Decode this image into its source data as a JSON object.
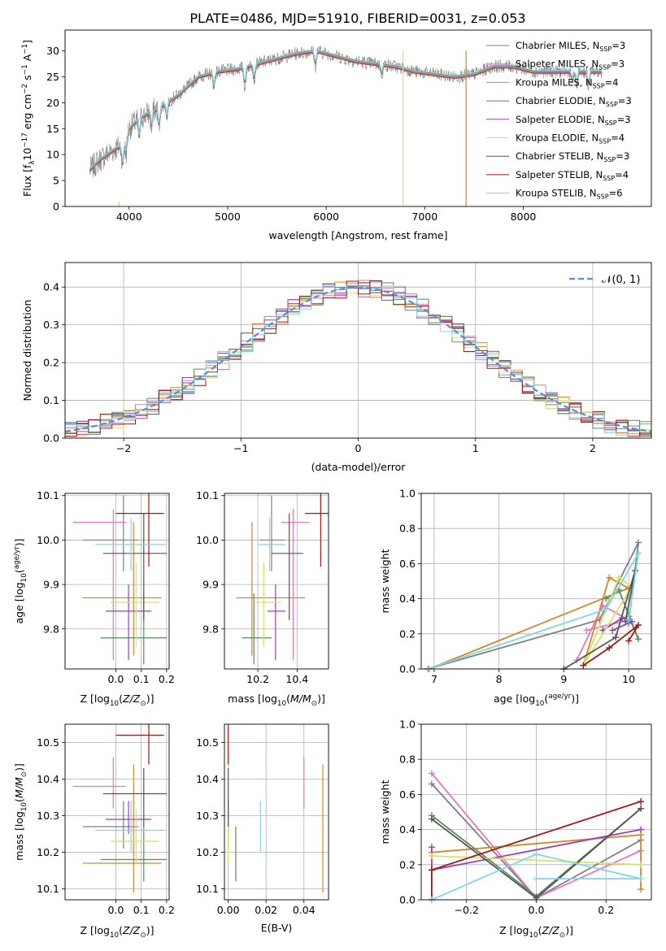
{
  "figure": {
    "title": "PLATE=0486, MJD=51910, FIBERID=0031, z=0.053"
  },
  "colors": {
    "models": [
      "#7f7f7f",
      "#e377c2",
      "#d4862b",
      "#5a8a5a",
      "#9a3fb5",
      "#d8e26a",
      "#555555",
      "#a01818",
      "#7fd7e6"
    ],
    "normal_curve": "#5b8ad8",
    "grid": "#b0b0b0"
  },
  "models": [
    {
      "name": "Chabrier MILES",
      "n_ssp": "3",
      "age": 10.0,
      "age_err": [
        0.07,
        0.1
      ],
      "Z": 0.03,
      "Z_err": [
        0.16,
        0.06
      ],
      "mass": 10.27,
      "mass_err": [
        0.06,
        0.07
      ],
      "ebv": 0.0
    },
    {
      "name": "Salpeter MILES",
      "n_ssp": "3",
      "age": 10.04,
      "age_err": [
        0.31,
        0.03
      ],
      "Z": -0.01,
      "Z_err": [
        0.16,
        0.05
      ],
      "mass": 10.38,
      "mass_err": [
        0.06,
        0.08
      ],
      "ebv": 0.04
    },
    {
      "name": "Kroupa MILES",
      "n_ssp": "4",
      "age": 9.87,
      "age_err": [
        0.13,
        0.17
      ],
      "Z": 0.07,
      "Z_err": [
        0.2,
        0.11
      ],
      "mass": 10.17,
      "mass_err": [
        0.08,
        0.27
      ],
      "ebv": 0.05
    },
    {
      "name": "Chabrier ELODIE",
      "n_ssp": "3",
      "age": 9.78,
      "age_err": [
        0.06,
        0.1
      ],
      "Z": 0.11,
      "Z_err": [
        0.17,
        0.09
      ],
      "mass": 10.18,
      "mass_err": [
        0.06,
        0.09
      ],
      "ebv": 0.004
    },
    {
      "name": "Salpeter ELODIE",
      "n_ssp": "3",
      "age": 9.84,
      "age_err": [
        0.11,
        0.06
      ],
      "Z": 0.05,
      "Z_err": [
        0.09,
        0.09
      ],
      "mass": 10.29,
      "mass_err": [
        0.04,
        0.05
      ],
      "ebv": 0.0
    },
    {
      "name": "Kroupa ELODIE",
      "n_ssp": "4",
      "age": 9.86,
      "age_err": [
        0.1,
        0.09
      ],
      "Z": 0.08,
      "Z_err": [
        0.1,
        0.09
      ],
      "mass": 10.23,
      "mass_err": [
        0.06,
        0.09
      ],
      "ebv": 0.0
    },
    {
      "name": "Chabrier STELIB",
      "n_ssp": "3",
      "age": 9.97,
      "age_err": [
        0.15,
        0.09
      ],
      "Z": 0.11,
      "Z_err": [
        0.16,
        0.09
      ],
      "mass": 10.36,
      "mass_err": [
        0.09,
        0.07
      ],
      "ebv": 0.0
    },
    {
      "name": "Salpeter STELIB",
      "n_ssp": "4",
      "age": 10.06,
      "age_err": [
        0.12,
        0.06
      ],
      "Z": 0.13,
      "Z_err": [
        0.13,
        0.06
      ],
      "mass": 10.52,
      "mass_err": [
        0.08,
        0.07
      ],
      "ebv": 0.0
    },
    {
      "name": "Kroupa STELIB",
      "n_ssp": "6",
      "age": 9.99,
      "age_err": [
        0.06,
        0.06
      ],
      "Z": 0.06,
      "Z_err": [
        0.14,
        0.14
      ],
      "mass": 10.26,
      "mass_err": [
        0.06,
        0.08
      ],
      "ebv": 0.017
    }
  ],
  "chart_data": [
    {
      "type": "line",
      "title": "PLATE=0486, MJD=51910, FIBERID=0031, z=0.053",
      "xlabel": "wavelength [Angstrom, rest frame]",
      "ylabel_parts": [
        "Flux [f",
        "λ",
        "10",
        "−17",
        " erg cm",
        "−2",
        " s",
        "−1",
        " A",
        "−1",
        "]"
      ],
      "xlim": [
        3350,
        9300
      ],
      "ylim": [
        0,
        34
      ],
      "xticks": [
        4000,
        5000,
        6000,
        7000,
        8000
      ],
      "yticks": [
        0,
        5,
        10,
        15,
        20,
        25,
        30
      ],
      "grid": false,
      "legend_location": "top-right",
      "continuum_knots": [
        [
          3600,
          7
        ],
        [
          3700,
          9
        ],
        [
          3850,
          11
        ],
        [
          3950,
          12
        ],
        [
          4000,
          15
        ],
        [
          4100,
          17
        ],
        [
          4300,
          19
        ],
        [
          4500,
          21.5
        ],
        [
          4700,
          25
        ],
        [
          4900,
          26
        ],
        [
          5100,
          26.5
        ],
        [
          5300,
          27.5
        ],
        [
          5500,
          28.5
        ],
        [
          5700,
          29.5
        ],
        [
          5900,
          30
        ],
        [
          6100,
          29
        ],
        [
          6300,
          28
        ],
        [
          6500,
          27.5
        ],
        [
          6700,
          27
        ],
        [
          6900,
          26
        ],
        [
          7100,
          25.5
        ],
        [
          7300,
          25
        ],
        [
          7500,
          25.5
        ],
        [
          7700,
          27
        ],
        [
          7900,
          27
        ],
        [
          8100,
          26
        ],
        [
          8300,
          26
        ],
        [
          8500,
          26
        ],
        [
          8800,
          26
        ]
      ],
      "absorption_features": [
        [
          3934,
          4
        ],
        [
          3969,
          3
        ],
        [
          4102,
          4
        ],
        [
          4227,
          3
        ],
        [
          4305,
          4
        ],
        [
          4383,
          3
        ],
        [
          4861,
          3
        ],
        [
          5175,
          4
        ],
        [
          5270,
          3
        ],
        [
          5890,
          3
        ],
        [
          6563,
          2
        ],
        [
          8498,
          2
        ],
        [
          8542,
          3
        ],
        [
          8662,
          3
        ]
      ]
    },
    {
      "type": "histogram",
      "xlabel": "(data-model)/error",
      "ylabel": "Normed distribution",
      "xlim": [
        -2.5,
        2.5
      ],
      "ylim": [
        0,
        0.465
      ],
      "xticks": [
        -2,
        -1,
        0,
        1,
        2
      ],
      "xticklabels": [
        "−2",
        "−1",
        "0",
        "1",
        "2"
      ],
      "yticks": [
        0.0,
        0.1,
        0.2,
        0.3,
        0.4
      ],
      "yticklabels": [
        "0.0",
        "0.1",
        "0.2",
        "0.3",
        "0.4"
      ],
      "bin_width": 0.1,
      "grid": true,
      "legend_location": "top-right",
      "legend_label": "𝒩(0, 1)"
    },
    {
      "type": "scatter",
      "xlabel_parts": [
        "Z [log",
        "10",
        "(",
        "Z/Z",
        "⊙",
        ")]"
      ],
      "ylabel_parts": [
        "age  [log",
        "10",
        "(",
        "age/yr",
        ")]"
      ],
      "xlim": [
        -0.2,
        0.21
      ],
      "ylim": [
        9.71,
        10.105
      ],
      "xticks": [
        0.0,
        0.1,
        0.2
      ],
      "xticklabels": [
        "0.0",
        "0.1",
        "0.2"
      ],
      "yticks": [
        9.8,
        9.9,
        10.0,
        10.1
      ],
      "yticklabels": [
        "9.8",
        "9.9",
        "10.0",
        "10.1"
      ],
      "grid": true
    },
    {
      "type": "scatter",
      "xlabel_parts": [
        "mass [log",
        "10",
        "(",
        "M/M",
        "⊙",
        ")]"
      ],
      "xlim": [
        10.03,
        10.56
      ],
      "ylim": [
        9.71,
        10.105
      ],
      "xticks": [
        10.2,
        10.4
      ],
      "xticklabels": [
        "10.2",
        "10.4"
      ],
      "yticks": [
        9.8,
        9.9,
        10.0,
        10.1
      ],
      "yticklabels": [
        "9.8",
        "9.9",
        "10.0",
        "10.1"
      ],
      "grid": true
    },
    {
      "type": "line",
      "xlabel_parts": [
        "age  [log",
        "10",
        "(",
        "age/yr",
        ")]"
      ],
      "ylabel": "mass weight",
      "xlim": [
        6.8,
        10.35
      ],
      "ylim": [
        0.0,
        1.0
      ],
      "xticks": [
        7,
        8,
        9,
        10
      ],
      "xticklabels": [
        "7",
        "8",
        "9",
        "10"
      ],
      "yticks": [
        0.0,
        0.2,
        0.4,
        0.6,
        0.8,
        1.0
      ],
      "yticklabels": [
        "0.0",
        "0.2",
        "0.4",
        "0.6",
        "0.8",
        "1.0"
      ],
      "grid": true,
      "series": [
        [
          [
            10.0,
            0.26
          ],
          [
            10.15,
            0.72
          ],
          [
            9.55,
            0.28
          ],
          [
            6.9,
            0.0
          ]
        ],
        [
          [
            9.2,
            0.05
          ],
          [
            9.6,
            0.36
          ],
          [
            10.0,
            0.28
          ],
          [
            9.35,
            0.22
          ]
        ],
        [
          [
            9.3,
            0.02
          ],
          [
            9.7,
            0.52
          ],
          [
            10.0,
            0.46
          ],
          [
            6.92,
            0.0
          ]
        ],
        [
          [
            9.65,
            0.4
          ],
          [
            9.85,
            0.45
          ],
          [
            10.15,
            0.17
          ],
          [
            10.0,
            0.3
          ]
        ],
        [
          [
            9.6,
            0.22
          ],
          [
            9.9,
            0.29
          ],
          [
            10.05,
            0.27
          ],
          [
            9.75,
            0.22
          ]
        ],
        [
          [
            9.3,
            0.02
          ],
          [
            9.85,
            0.52
          ],
          [
            10.05,
            0.47
          ],
          [
            9.3,
            0.02
          ]
        ],
        [
          [
            9.0,
            0.0
          ],
          [
            9.8,
            0.18
          ],
          [
            10.1,
            0.56
          ],
          [
            9.95,
            0.27
          ]
        ],
        [
          [
            9.3,
            0.02
          ],
          [
            9.7,
            0.12
          ],
          [
            10.15,
            0.25
          ],
          [
            10.0,
            0.16
          ]
        ],
        [
          [
            6.9,
            0.0
          ],
          [
            9.65,
            0.34
          ],
          [
            10.15,
            0.66
          ],
          [
            10.0,
            0.28
          ]
        ]
      ]
    },
    {
      "type": "scatter",
      "xlabel_parts": [
        "Z [log",
        "10",
        "(",
        "Z/Z",
        "⊙",
        ")]"
      ],
      "ylabel_parts": [
        "mass [log",
        "10",
        "(",
        "M/M",
        "⊙",
        ")]"
      ],
      "xlim": [
        -0.2,
        0.21
      ],
      "ylim": [
        10.07,
        10.55
      ],
      "xticks": [
        0.0,
        0.1,
        0.2
      ],
      "xticklabels": [
        "0.0",
        "0.1",
        "0.2"
      ],
      "yticks": [
        10.1,
        10.2,
        10.3,
        10.4,
        10.5
      ],
      "yticklabels": [
        "10.1",
        "10.2",
        "10.3",
        "10.4",
        "10.5"
      ],
      "grid": true
    },
    {
      "type": "scatter",
      "xlabel": "E(B-V)",
      "xlim": [
        -0.002,
        0.053
      ],
      "ylim": [
        10.07,
        10.55
      ],
      "xticks": [
        0.0,
        0.02,
        0.04
      ],
      "xticklabels": [
        "0.00",
        "0.02",
        "0.04"
      ],
      "yticks": [
        10.1,
        10.2,
        10.3,
        10.4,
        10.5
      ],
      "yticklabels": [
        "10.1",
        "10.2",
        "10.3",
        "10.4",
        "10.5"
      ],
      "grid": true
    },
    {
      "type": "line",
      "xlabel_parts": [
        "Z [log",
        "10",
        "(",
        "Z/Z",
        "⊙",
        ")]"
      ],
      "ylabel": "mass weight",
      "xlim": [
        -0.33,
        0.33
      ],
      "ylim": [
        0.0,
        1.0
      ],
      "xticks": [
        -0.2,
        0.0,
        0.2
      ],
      "xticklabels": [
        "−0.2",
        "0.0",
        "0.2"
      ],
      "yticks": [
        0.0,
        0.2,
        0.4,
        0.6,
        0.8,
        1.0
      ],
      "yticklabels": [
        "0.0",
        "0.2",
        "0.4",
        "0.6",
        "0.8",
        "1.0"
      ],
      "grid": true,
      "series": [
        [
          [
            -0.3,
            0.66
          ],
          [
            0.0,
            0.01
          ],
          [
            0.3,
            0.34
          ]
        ],
        [
          [
            -0.3,
            0.72
          ],
          [
            0.0,
            0.01
          ],
          [
            0.3,
            0.28
          ]
        ],
        [
          [
            -0.3,
            0.27
          ],
          [
            0.3,
            0.37
          ],
          [
            0.3,
            0.06
          ]
        ],
        [
          [
            -0.3,
            0.48
          ],
          [
            0.0,
            0.02
          ],
          [
            0.3,
            0.52
          ]
        ],
        [
          [
            -0.3,
            0.3
          ],
          [
            -0.3,
            0.17
          ],
          [
            0.3,
            0.4
          ]
        ],
        [
          [
            -0.3,
            0.25
          ],
          [
            0.3,
            0.2
          ]
        ],
        [
          [
            -0.3,
            0.46
          ],
          [
            0.0,
            0.01
          ],
          [
            0.3,
            0.52
          ]
        ],
        [
          [
            -0.3,
            0.0
          ],
          [
            -0.3,
            0.17
          ],
          [
            0.3,
            0.56
          ]
        ],
        [
          [
            -0.3,
            0.0
          ],
          [
            0.0,
            0.26
          ],
          [
            0.3,
            0.12
          ],
          [
            0.0,
            0.12
          ]
        ]
      ]
    }
  ]
}
